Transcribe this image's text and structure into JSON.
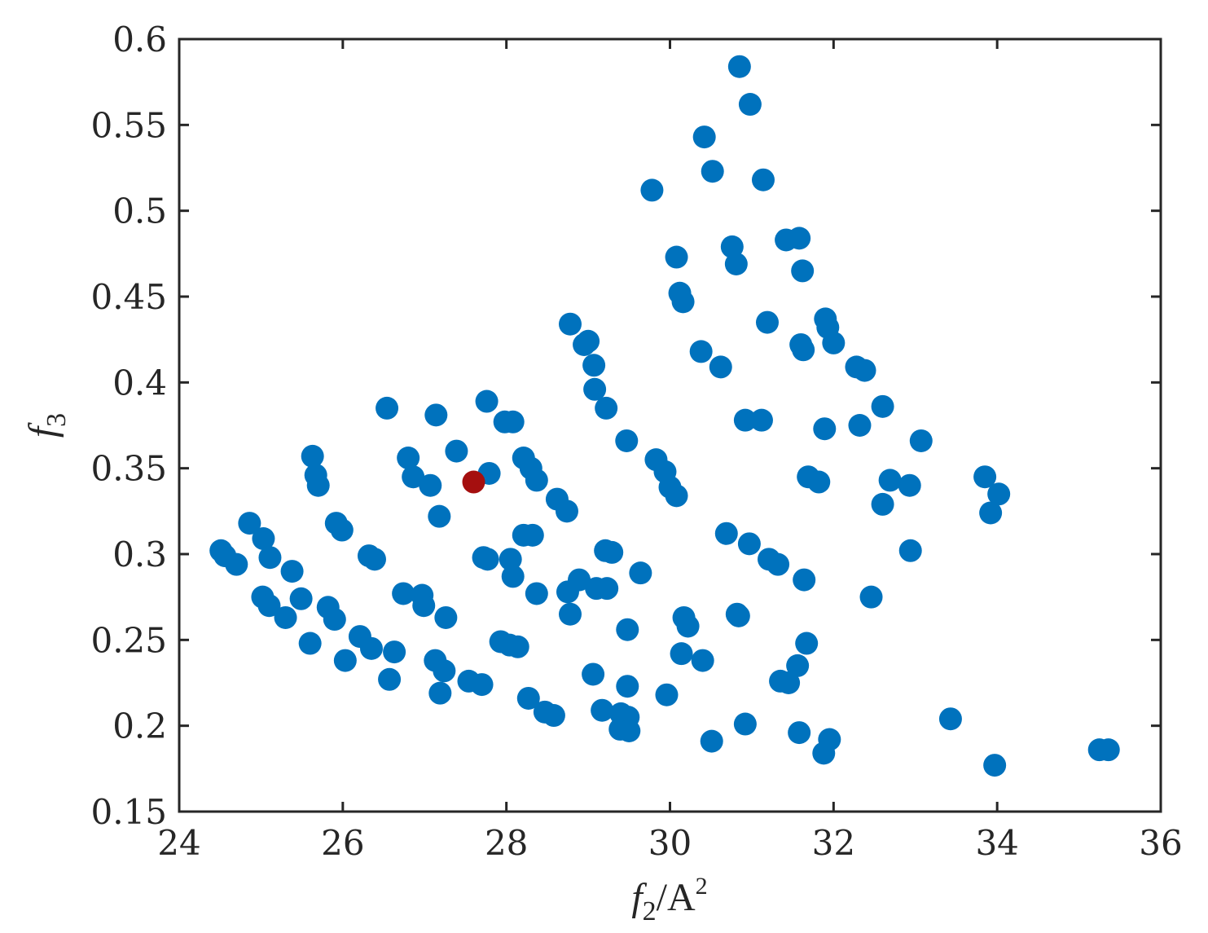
{
  "chart_data": {
    "type": "scatter",
    "title": "",
    "xlabel": {
      "var": "f",
      "sub": "2",
      "unit": "/A",
      "sup": "2"
    },
    "ylabel": {
      "var": "f",
      "sub": "3"
    },
    "xlim": [
      24,
      36
    ],
    "ylim": [
      0.15,
      0.6
    ],
    "xticks": [
      "24",
      "26",
      "28",
      "30",
      "32",
      "34",
      "36"
    ],
    "yticks": [
      "0.15",
      "0.2",
      "0.25",
      "0.3",
      "0.35",
      "0.4",
      "0.45",
      "0.5",
      "0.55",
      "0.6"
    ],
    "grid": false,
    "series": [
      {
        "color": "#0072BD",
        "points": [
          [
            30.85,
            0.584
          ],
          [
            30.98,
            0.562
          ],
          [
            30.42,
            0.543
          ],
          [
            30.52,
            0.523
          ],
          [
            31.14,
            0.518
          ],
          [
            29.78,
            0.512
          ],
          [
            31.42,
            0.483
          ],
          [
            31.58,
            0.484
          ],
          [
            30.76,
            0.479
          ],
          [
            30.81,
            0.469
          ],
          [
            30.08,
            0.473
          ],
          [
            31.62,
            0.465
          ],
          [
            30.12,
            0.452
          ],
          [
            30.16,
            0.447
          ],
          [
            31.19,
            0.435
          ],
          [
            31.9,
            0.437
          ],
          [
            31.93,
            0.432
          ],
          [
            28.78,
            0.434
          ],
          [
            29.0,
            0.424
          ],
          [
            28.95,
            0.422
          ],
          [
            31.6,
            0.422
          ],
          [
            31.63,
            0.419
          ],
          [
            32.0,
            0.423
          ],
          [
            30.38,
            0.418
          ],
          [
            30.62,
            0.409
          ],
          [
            32.28,
            0.409
          ],
          [
            32.38,
            0.407
          ],
          [
            29.07,
            0.41
          ],
          [
            29.08,
            0.396
          ],
          [
            29.22,
            0.385
          ],
          [
            27.76,
            0.389
          ],
          [
            26.54,
            0.385
          ],
          [
            27.14,
            0.381
          ],
          [
            27.98,
            0.377
          ],
          [
            28.08,
            0.377
          ],
          [
            30.92,
            0.378
          ],
          [
            31.12,
            0.378
          ],
          [
            32.6,
            0.386
          ],
          [
            32.32,
            0.375
          ],
          [
            31.89,
            0.373
          ],
          [
            29.47,
            0.366
          ],
          [
            33.07,
            0.366
          ],
          [
            27.39,
            0.36
          ],
          [
            25.63,
            0.357
          ],
          [
            26.8,
            0.356
          ],
          [
            28.21,
            0.356
          ],
          [
            29.83,
            0.355
          ],
          [
            28.3,
            0.35
          ],
          [
            29.94,
            0.348
          ],
          [
            25.67,
            0.346
          ],
          [
            26.86,
            0.345
          ],
          [
            27.79,
            0.347
          ],
          [
            31.69,
            0.345
          ],
          [
            32.69,
            0.343
          ],
          [
            28.37,
            0.343
          ],
          [
            25.7,
            0.34
          ],
          [
            27.07,
            0.34
          ],
          [
            30.0,
            0.339
          ],
          [
            31.82,
            0.342
          ],
          [
            32.93,
            0.34
          ],
          [
            33.85,
            0.345
          ],
          [
            34.02,
            0.335
          ],
          [
            30.08,
            0.334
          ],
          [
            28.62,
            0.332
          ],
          [
            28.74,
            0.325
          ],
          [
            32.6,
            0.329
          ],
          [
            33.92,
            0.324
          ],
          [
            27.18,
            0.322
          ],
          [
            25.92,
            0.318
          ],
          [
            24.86,
            0.318
          ],
          [
            25.99,
            0.314
          ],
          [
            30.69,
            0.312
          ],
          [
            28.21,
            0.311
          ],
          [
            28.32,
            0.311
          ],
          [
            25.03,
            0.309
          ],
          [
            24.51,
            0.302
          ],
          [
            24.56,
            0.299
          ],
          [
            24.7,
            0.294
          ],
          [
            30.97,
            0.306
          ],
          [
            29.21,
            0.302
          ],
          [
            29.29,
            0.301
          ],
          [
            32.94,
            0.302
          ],
          [
            26.32,
            0.299
          ],
          [
            26.39,
            0.297
          ],
          [
            25.11,
            0.298
          ],
          [
            27.72,
            0.298
          ],
          [
            27.77,
            0.297
          ],
          [
            28.05,
            0.297
          ],
          [
            31.21,
            0.297
          ],
          [
            31.32,
            0.294
          ],
          [
            25.38,
            0.29
          ],
          [
            29.64,
            0.289
          ],
          [
            28.08,
            0.287
          ],
          [
            28.89,
            0.285
          ],
          [
            31.64,
            0.285
          ],
          [
            29.1,
            0.28
          ],
          [
            29.23,
            0.28
          ],
          [
            28.75,
            0.278
          ],
          [
            26.74,
            0.277
          ],
          [
            26.97,
            0.276
          ],
          [
            28.37,
            0.277
          ],
          [
            25.02,
            0.275
          ],
          [
            25.49,
            0.274
          ],
          [
            32.46,
            0.275
          ],
          [
            25.1,
            0.27
          ],
          [
            26.99,
            0.27
          ],
          [
            25.82,
            0.269
          ],
          [
            25.9,
            0.262
          ],
          [
            28.78,
            0.265
          ],
          [
            30.84,
            0.264
          ],
          [
            30.82,
            0.265
          ],
          [
            25.3,
            0.263
          ],
          [
            27.26,
            0.263
          ],
          [
            30.17,
            0.263
          ],
          [
            30.22,
            0.258
          ],
          [
            29.48,
            0.256
          ],
          [
            26.21,
            0.252
          ],
          [
            27.93,
            0.249
          ],
          [
            28.04,
            0.247
          ],
          [
            28.14,
            0.246
          ],
          [
            25.6,
            0.248
          ],
          [
            31.67,
            0.248
          ],
          [
            26.35,
            0.245
          ],
          [
            26.63,
            0.243
          ],
          [
            30.14,
            0.242
          ],
          [
            26.03,
            0.238
          ],
          [
            27.13,
            0.238
          ],
          [
            30.4,
            0.238
          ],
          [
            31.56,
            0.235
          ],
          [
            27.24,
            0.232
          ],
          [
            29.06,
            0.23
          ],
          [
            26.57,
            0.227
          ],
          [
            27.54,
            0.226
          ],
          [
            27.7,
            0.224
          ],
          [
            31.35,
            0.226
          ],
          [
            31.45,
            0.225
          ],
          [
            29.48,
            0.223
          ],
          [
            27.19,
            0.219
          ],
          [
            29.96,
            0.218
          ],
          [
            28.27,
            0.216
          ],
          [
            28.47,
            0.208
          ],
          [
            28.58,
            0.206
          ],
          [
            29.17,
            0.209
          ],
          [
            29.4,
            0.207
          ],
          [
            29.49,
            0.205
          ],
          [
            33.43,
            0.204
          ],
          [
            29.39,
            0.198
          ],
          [
            29.5,
            0.197
          ],
          [
            30.92,
            0.201
          ],
          [
            31.58,
            0.196
          ],
          [
            31.95,
            0.192
          ],
          [
            30.51,
            0.191
          ],
          [
            31.88,
            0.184
          ],
          [
            35.25,
            0.186
          ],
          [
            35.36,
            0.186
          ],
          [
            33.97,
            0.177
          ]
        ]
      },
      {
        "color": "#A50F0F",
        "points": [
          [
            27.6,
            0.342
          ]
        ]
      }
    ]
  }
}
